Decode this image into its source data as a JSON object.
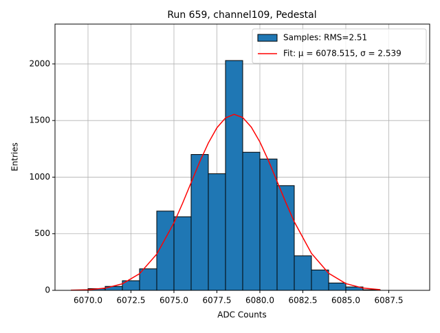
{
  "chart_data": {
    "type": "histogram",
    "title": "Run 659, channel109, Pedestal",
    "xlabel": "ADC Counts",
    "ylabel": "Entries",
    "xlim": [
      6068.08,
      6089.88
    ],
    "ylim": [
      0,
      2352
    ],
    "xticks": [
      {
        "value": 6070,
        "label": "6070.0"
      },
      6072.5,
      {
        "value": 6075,
        "label": "6075.0"
      },
      6077.5,
      {
        "value": 6080,
        "label": "6080.0"
      },
      6082.5,
      {
        "value": 6085,
        "label": "6085.0"
      },
      6087.5
    ],
    "yticks": [
      0,
      500,
      1000,
      1500,
      2000
    ],
    "grid": true,
    "legend": "upper right",
    "series": [
      {
        "type": "histogram",
        "name": "Samples: RMS=2.51",
        "color": "#1f77b4",
        "bins": [
          6070,
          6071,
          6072,
          6073,
          6074,
          6075,
          6076,
          6077,
          6078,
          6079,
          6080,
          6081,
          6082,
          6083,
          6084,
          6085,
          6086,
          6087
        ],
        "values": [
          15,
          35,
          85,
          190,
          700,
          650,
          1200,
          1030,
          2030,
          1220,
          1160,
          925,
          305,
          180,
          65,
          30,
          5
        ]
      },
      {
        "type": "line",
        "name": "Fit: μ = 6078.515, σ = 2.539",
        "color": "#ff0000",
        "x": [
          6069,
          6070,
          6071,
          6072,
          6073,
          6074,
          6075,
          6075.5,
          6076,
          6076.5,
          6077,
          6077.5,
          6078,
          6078.5,
          6079,
          6079.5,
          6080,
          6080.5,
          6081,
          6081.5,
          6082,
          6083,
          6084,
          6085,
          6086,
          6087
        ],
        "values": [
          1.4,
          5.6,
          19.5,
          57.8,
          147,
          320,
          596,
          768,
          952,
          1135,
          1301,
          1436,
          1523,
          1555,
          1527,
          1442,
          1311,
          1146,
          963,
          779,
          606,
          327,
          151,
          59.6,
          20.2,
          5.8
        ]
      }
    ]
  }
}
